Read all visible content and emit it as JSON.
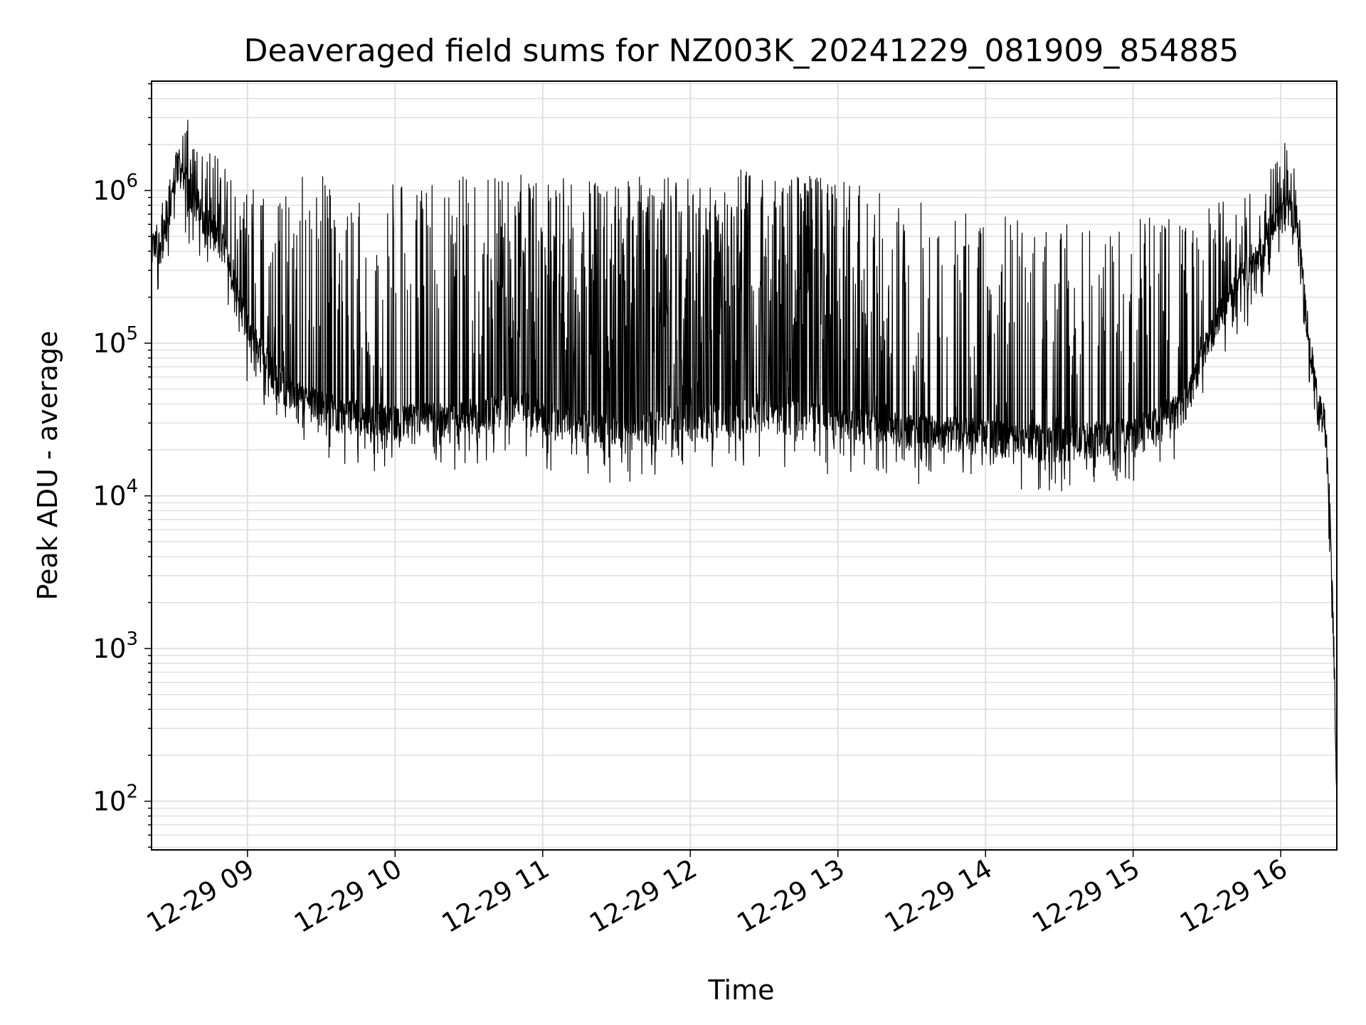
{
  "chart_data": {
    "type": "line",
    "title": "Deaveraged field sums for NZ003K_20241229_081909_854885",
    "xlabel": "Time",
    "ylabel": "Peak ADU - average",
    "x_unit": "hours, 2024-12-29",
    "xlim": [
      8.35,
      16.38
    ],
    "ylim": [
      48,
      5200000
    ],
    "yscale": "log",
    "grid": true,
    "line_color": "#000000",
    "grid_color": "#e0e0e0",
    "x_ticks": [
      {
        "value": 9,
        "label": "12-29 09"
      },
      {
        "value": 10,
        "label": "12-29 10"
      },
      {
        "value": 11,
        "label": "12-29 11"
      },
      {
        "value": 12,
        "label": "12-29 12"
      },
      {
        "value": 13,
        "label": "12-29 13"
      },
      {
        "value": 14,
        "label": "12-29 14"
      },
      {
        "value": 15,
        "label": "12-29 15"
      },
      {
        "value": 16,
        "label": "12-29 16"
      }
    ],
    "y_ticks": [
      {
        "value": 100,
        "base": "10",
        "exp": "2"
      },
      {
        "value": 1000,
        "base": "10",
        "exp": "3"
      },
      {
        "value": 10000,
        "base": "10",
        "exp": "4"
      },
      {
        "value": 100000,
        "base": "10",
        "exp": "5"
      },
      {
        "value": 1000000,
        "base": "10",
        "exp": "6"
      }
    ],
    "series": [
      {
        "baseline": [
          {
            "x": 8.35,
            "y": 400000
          },
          {
            "x": 8.45,
            "y": 470000
          },
          {
            "x": 8.52,
            "y": 1500000
          },
          {
            "x": 8.6,
            "y": 1000000
          },
          {
            "x": 8.7,
            "y": 700000
          },
          {
            "x": 8.8,
            "y": 480000
          },
          {
            "x": 8.9,
            "y": 300000
          },
          {
            "x": 8.95,
            "y": 170000
          },
          {
            "x": 9.0,
            "y": 120000
          },
          {
            "x": 9.1,
            "y": 85000
          },
          {
            "x": 9.2,
            "y": 55000
          },
          {
            "x": 9.3,
            "y": 48000
          },
          {
            "x": 9.4,
            "y": 42000
          },
          {
            "x": 9.5,
            "y": 38000
          },
          {
            "x": 9.6,
            "y": 35000
          },
          {
            "x": 9.8,
            "y": 32000
          },
          {
            "x": 10.0,
            "y": 30000
          },
          {
            "x": 10.3,
            "y": 32000
          },
          {
            "x": 10.6,
            "y": 34000
          },
          {
            "x": 10.85,
            "y": 38000
          },
          {
            "x": 11.0,
            "y": 32000
          },
          {
            "x": 11.3,
            "y": 28000
          },
          {
            "x": 11.6,
            "y": 26000
          },
          {
            "x": 11.9,
            "y": 30000
          },
          {
            "x": 12.2,
            "y": 32000
          },
          {
            "x": 12.5,
            "y": 34000
          },
          {
            "x": 12.8,
            "y": 32000
          },
          {
            "x": 13.0,
            "y": 30000
          },
          {
            "x": 13.3,
            "y": 28000
          },
          {
            "x": 13.6,
            "y": 26000
          },
          {
            "x": 13.9,
            "y": 25000
          },
          {
            "x": 14.2,
            "y": 23000
          },
          {
            "x": 14.5,
            "y": 22000
          },
          {
            "x": 14.8,
            "y": 24000
          },
          {
            "x": 15.0,
            "y": 26000
          },
          {
            "x": 15.2,
            "y": 30000
          },
          {
            "x": 15.35,
            "y": 40000
          },
          {
            "x": 15.45,
            "y": 70000
          },
          {
            "x": 15.55,
            "y": 130000
          },
          {
            "x": 15.7,
            "y": 230000
          },
          {
            "x": 15.85,
            "y": 350000
          },
          {
            "x": 15.95,
            "y": 600000
          },
          {
            "x": 16.05,
            "y": 750000
          },
          {
            "x": 16.12,
            "y": 600000
          },
          {
            "x": 16.15,
            "y": 250000
          },
          {
            "x": 16.2,
            "y": 90000
          },
          {
            "x": 16.25,
            "y": 40000
          },
          {
            "x": 16.3,
            "y": 30000
          },
          {
            "x": 16.33,
            "y": 10000
          },
          {
            "x": 16.36,
            "y": 1000
          },
          {
            "x": 16.38,
            "y": 90
          }
        ],
        "peak_envelope": [
          {
            "x": 8.35,
            "y": 500000
          },
          {
            "x": 8.6,
            "y": 3000000
          },
          {
            "x": 8.9,
            "y": 1200000
          },
          {
            "x": 9.2,
            "y": 900000
          },
          {
            "x": 9.4,
            "y": 1300000
          },
          {
            "x": 9.6,
            "y": 1200000
          },
          {
            "x": 9.9,
            "y": 1100000
          },
          {
            "x": 10.3,
            "y": 1200000
          },
          {
            "x": 10.7,
            "y": 1300000
          },
          {
            "x": 11.0,
            "y": 1300000
          },
          {
            "x": 11.5,
            "y": 1200000
          },
          {
            "x": 12.0,
            "y": 1300000
          },
          {
            "x": 12.5,
            "y": 1400000
          },
          {
            "x": 13.0,
            "y": 1200000
          },
          {
            "x": 13.3,
            "y": 1000000
          },
          {
            "x": 13.6,
            "y": 850000
          },
          {
            "x": 14.0,
            "y": 700000
          },
          {
            "x": 14.5,
            "y": 600000
          },
          {
            "x": 14.9,
            "y": 650000
          },
          {
            "x": 15.3,
            "y": 700000
          },
          {
            "x": 15.6,
            "y": 850000
          },
          {
            "x": 15.9,
            "y": 1100000
          },
          {
            "x": 16.05,
            "y": 3000000
          },
          {
            "x": 16.12,
            "y": 1200000
          },
          {
            "x": 16.2,
            "y": 200000
          },
          {
            "x": 16.3,
            "y": 45000
          },
          {
            "x": 16.38,
            "y": 100
          }
        ]
      }
    ]
  }
}
